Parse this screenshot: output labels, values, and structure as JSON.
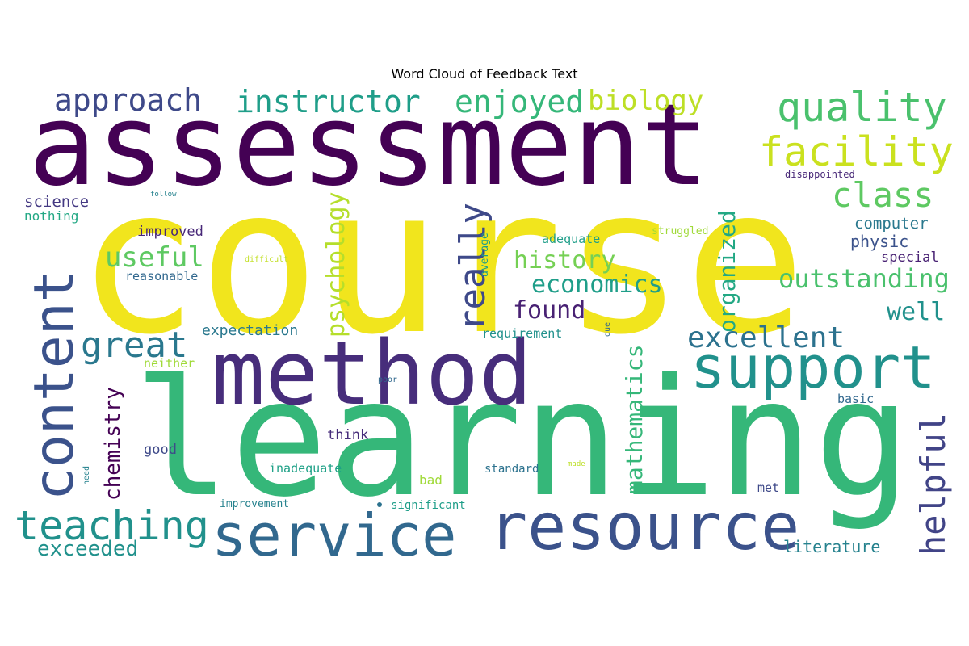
{
  "chart_data": {
    "type": "wordcloud",
    "title": "Word Cloud of Feedback Text",
    "words": [
      {
        "text": "course",
        "color": "#f1e51d"
      },
      {
        "text": "assessment",
        "color": "#440154"
      },
      {
        "text": "learning",
        "color": "#35b779"
      },
      {
        "text": "method",
        "color": "#472d7b"
      },
      {
        "text": "support",
        "color": "#21918c"
      },
      {
        "text": "resource",
        "color": "#3b528b"
      },
      {
        "text": "service",
        "color": "#31688e"
      },
      {
        "text": "content",
        "color": "#3b528b"
      },
      {
        "text": "teaching",
        "color": "#21918c"
      },
      {
        "text": "quality",
        "color": "#4ac16d"
      },
      {
        "text": "facility",
        "color": "#cae11f"
      },
      {
        "text": "class",
        "color": "#5ec962"
      },
      {
        "text": "approach",
        "color": "#3e4989"
      },
      {
        "text": "instructor",
        "color": "#1f9e89"
      },
      {
        "text": "enjoyed",
        "color": "#35b779"
      },
      {
        "text": "biology",
        "color": "#bddf26"
      },
      {
        "text": "great",
        "color": "#2a788e"
      },
      {
        "text": "helpful",
        "color": "#414487"
      },
      {
        "text": "excellent",
        "color": "#2c728e"
      },
      {
        "text": "really",
        "color": "#3e4989"
      },
      {
        "text": "useful",
        "color": "#5ec962"
      },
      {
        "text": "history",
        "color": "#75d054"
      },
      {
        "text": "economics",
        "color": "#1f9e89"
      },
      {
        "text": "outstanding",
        "color": "#4ac16d"
      },
      {
        "text": "psychology",
        "color": "#b5de2b"
      },
      {
        "text": "organized",
        "color": "#22a884"
      },
      {
        "text": "found",
        "color": "#482173"
      },
      {
        "text": "well",
        "color": "#21918c"
      },
      {
        "text": "chemistry",
        "color": "#440154"
      },
      {
        "text": "mathematics",
        "color": "#35b779"
      },
      {
        "text": "exceeded",
        "color": "#21918c"
      },
      {
        "text": "literature",
        "color": "#26828e"
      },
      {
        "text": "expectation",
        "color": "#2a788e"
      },
      {
        "text": "science",
        "color": "#443983"
      },
      {
        "text": "nothing",
        "color": "#22a884"
      },
      {
        "text": "improved",
        "color": "#482878"
      },
      {
        "text": "reasonable",
        "color": "#31688e"
      },
      {
        "text": "adequate",
        "color": "#1f9e89"
      },
      {
        "text": "computer",
        "color": "#2a788e"
      },
      {
        "text": "physic",
        "color": "#3b528b"
      },
      {
        "text": "special",
        "color": "#482173"
      },
      {
        "text": "requirement",
        "color": "#21918c"
      },
      {
        "text": "neither",
        "color": "#a0da39"
      },
      {
        "text": "basic",
        "color": "#31688e"
      },
      {
        "text": "think",
        "color": "#472d7b"
      },
      {
        "text": "good",
        "color": "#3e4989"
      },
      {
        "text": "inadequate",
        "color": "#1fa187"
      },
      {
        "text": "bad",
        "color": "#a0da39"
      },
      {
        "text": "standard",
        "color": "#2c728e"
      },
      {
        "text": "met",
        "color": "#3e4989"
      },
      {
        "text": "improvement",
        "color": "#26828e"
      },
      {
        "text": "significant",
        "color": "#1f9e89"
      },
      {
        "text": "struggled",
        "color": "#a0da39"
      },
      {
        "text": "disappointed",
        "color": "#482878"
      },
      {
        "text": "average",
        "color": "#1f9e89"
      },
      {
        "text": "difficult",
        "color": "#c2df23"
      },
      {
        "text": "follow",
        "color": "#26828e"
      },
      {
        "text": "due",
        "color": "#31688e"
      },
      {
        "text": "poor",
        "color": "#31688e"
      },
      {
        "text": "need",
        "color": "#26828e"
      },
      {
        "text": "made",
        "color": "#bddf26"
      }
    ]
  }
}
